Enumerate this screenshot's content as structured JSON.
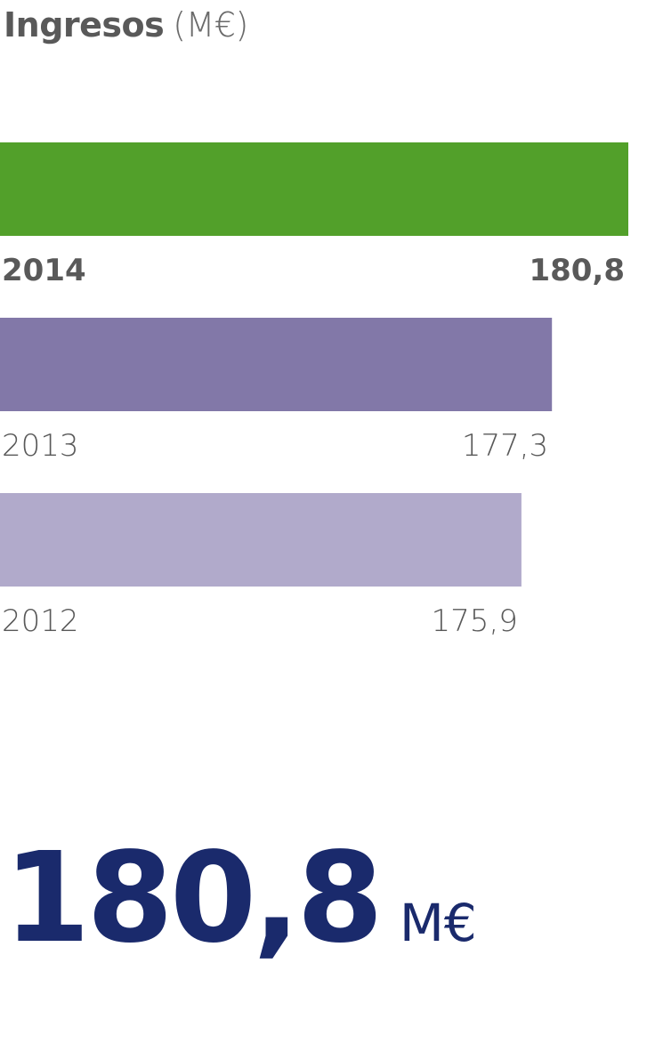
{
  "header": {
    "title_bold": "Ingresos",
    "title_unit": "(M€)"
  },
  "chart_data": {
    "type": "bar",
    "orientation": "horizontal",
    "categories": [
      "2014",
      "2013",
      "2012"
    ],
    "values": [
      180.8,
      177.3,
      175.9
    ],
    "value_labels": [
      "180,8",
      "177,3",
      "175,9"
    ],
    "colors": [
      "#52a02a",
      "#8278a8",
      "#b1aacb"
    ],
    "highlight": "2014",
    "title": "Ingresos (M€)",
    "xlabel": "",
    "ylabel": "",
    "grid": false,
    "legend": "none"
  },
  "total": {
    "value": "180,8",
    "unit": "M€"
  },
  "colors": {
    "text": "#595959",
    "accent_total": "#1a2a6c"
  }
}
